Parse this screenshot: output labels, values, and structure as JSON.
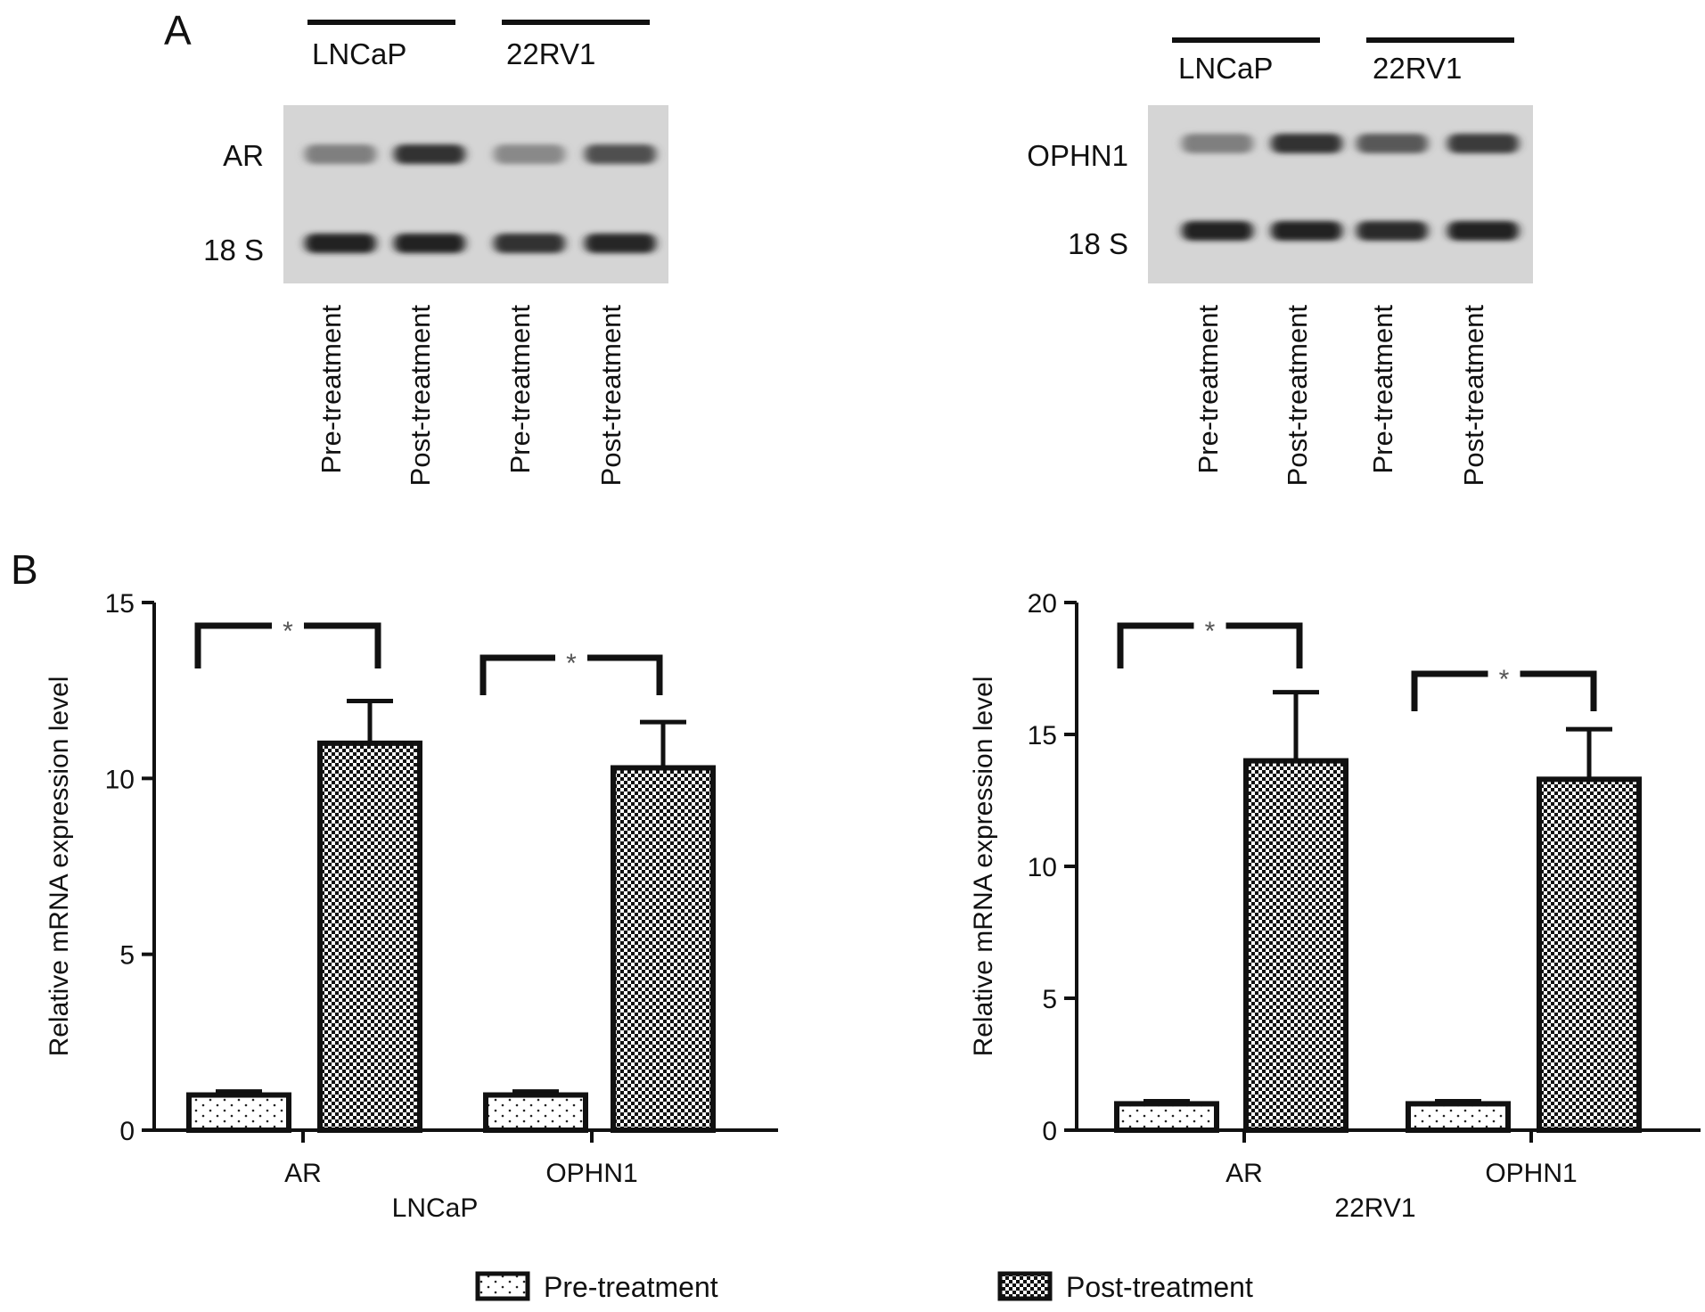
{
  "panel_a": {
    "letter": "A",
    "gels": [
      {
        "groups": [
          "LNCaP",
          "22RV1"
        ],
        "bands": [
          {
            "label": "AR",
            "intensities": [
              0.45,
              0.85,
              0.4,
              0.7
            ]
          },
          {
            "label": "18 S",
            "intensities": [
              0.92,
              0.92,
              0.85,
              0.9
            ]
          }
        ],
        "lanes": [
          "Pre-treatment",
          "Post-treatment",
          "Pre-treatment",
          "Post-treatment"
        ]
      },
      {
        "groups": [
          "LNCaP",
          "22RV1"
        ],
        "bands": [
          {
            "label": "OPHN1",
            "intensities": [
              0.45,
              0.85,
              0.65,
              0.8
            ]
          },
          {
            "label": "18 S",
            "intensities": [
              0.92,
              0.92,
              0.88,
              0.92
            ]
          }
        ],
        "lanes": [
          "Pre-treatment",
          "Post-treatment",
          "Pre-treatment",
          "Post-treatment"
        ]
      }
    ]
  },
  "panel_b": {
    "letter": "B"
  },
  "chart_data": [
    {
      "type": "bar",
      "categories": [
        "AR",
        "OPHN1"
      ],
      "xlabel": "LNCaP",
      "ylabel": "Relative mRNA expression level",
      "ylim": [
        0,
        15
      ],
      "yticks": [
        "0",
        "5",
        "10",
        "15"
      ],
      "series": [
        {
          "name": "Pre-treatment",
          "values": [
            1.0,
            1.0
          ],
          "errors": [
            0.1,
            0.1
          ]
        },
        {
          "name": "Post-treatment",
          "values": [
            11.0,
            10.3
          ],
          "errors": [
            1.2,
            1.3
          ]
        }
      ],
      "annotations": [
        "*",
        "*"
      ]
    },
    {
      "type": "bar",
      "categories": [
        "AR",
        "OPHN1"
      ],
      "xlabel": "22RV1",
      "ylabel": "Relative mRNA expression level",
      "ylim": [
        0,
        20
      ],
      "yticks": [
        "0",
        "5",
        "10",
        "15",
        "20"
      ],
      "series": [
        {
          "name": "Pre-treatment",
          "values": [
            1.0,
            1.0
          ],
          "errors": [
            0.1,
            0.1
          ]
        },
        {
          "name": "Post-treatment",
          "values": [
            14.0,
            13.3
          ],
          "errors": [
            2.6,
            1.9
          ]
        }
      ],
      "annotations": [
        "*",
        "*"
      ]
    }
  ],
  "legend": {
    "items": [
      {
        "label": "Pre-treatment",
        "pattern": "dots"
      },
      {
        "label": "Post-treatment",
        "pattern": "checker"
      }
    ]
  }
}
